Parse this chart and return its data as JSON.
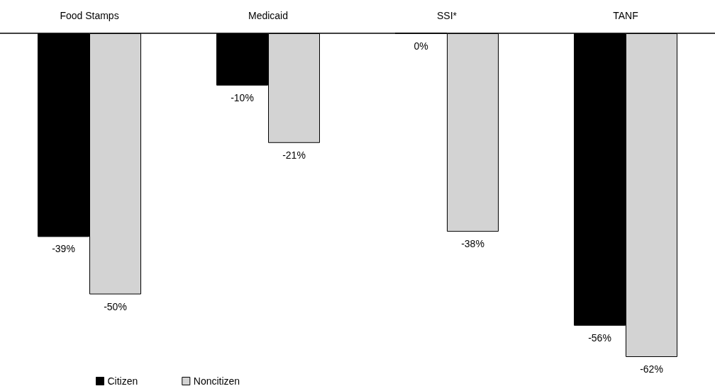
{
  "chart_data": {
    "type": "bar",
    "categories": [
      "Food Stamps",
      "Medicaid",
      "SSI*",
      "TANF"
    ],
    "series": [
      {
        "name": "Citizen",
        "color": "#000000",
        "values": [
          -39,
          -10,
          0,
          -56
        ],
        "value_labels": [
          "-39%",
          "-10%",
          "0%",
          "-56%"
        ]
      },
      {
        "name": "Noncitizen",
        "color": "#d3d3d3",
        "values": [
          -50,
          -21,
          -38,
          -62
        ],
        "value_labels": [
          "-50%",
          "-21%",
          "-38%",
          "-62%"
        ]
      }
    ],
    "legend": "bottom left"
  }
}
